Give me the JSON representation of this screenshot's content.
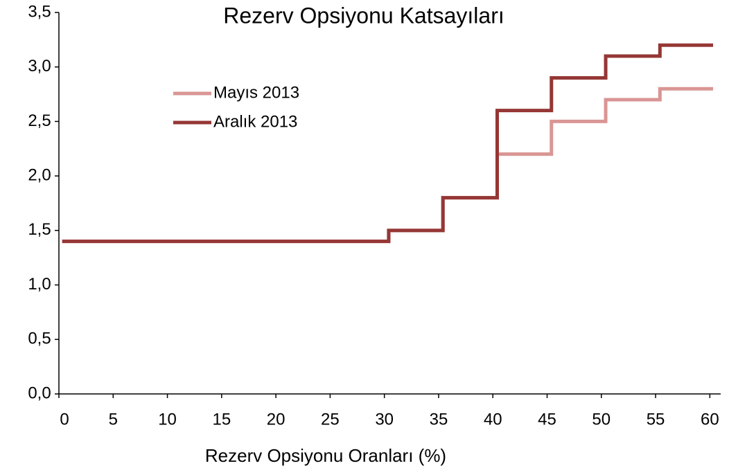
{
  "chart_data": {
    "type": "step",
    "title": "Rezerv Opsiyonu Katsayıları",
    "xlabel": "Rezerv Opsiyonu Oranları (%)",
    "x": [
      0.3,
      30.4,
      35.4,
      40.4,
      45.4,
      50.4,
      55.4,
      60.3
    ],
    "series": [
      {
        "name": "Mayıs 2013",
        "color": "#d99694",
        "values": [
          1.4,
          1.5,
          1.8,
          2.2,
          2.5,
          2.7,
          2.8,
          2.8
        ]
      },
      {
        "name": "Aralık 2013",
        "color": "#953735",
        "values": [
          1.4,
          1.5,
          1.8,
          2.6,
          2.9,
          3.1,
          3.2,
          3.2
        ]
      }
    ],
    "xlim": [
      0,
      61
    ],
    "xticks": [
      0,
      5,
      10,
      15,
      20,
      25,
      30,
      35,
      40,
      45,
      50,
      55,
      60
    ],
    "ylim": [
      0,
      3.5
    ],
    "yticks": [
      {
        "value": 0,
        "label": "0,0"
      },
      {
        "value": 0.5,
        "label": "0,5"
      },
      {
        "value": 1,
        "label": "1,0"
      },
      {
        "value": 1.5,
        "label": "1,5"
      },
      {
        "value": 2,
        "label": "2,0"
      },
      {
        "value": 2.5,
        "label": "2,5"
      },
      {
        "value": 3,
        "label": "3,0"
      },
      {
        "value": 3.5,
        "label": "3,5"
      }
    ],
    "legend": "upper left",
    "grid": false
  }
}
